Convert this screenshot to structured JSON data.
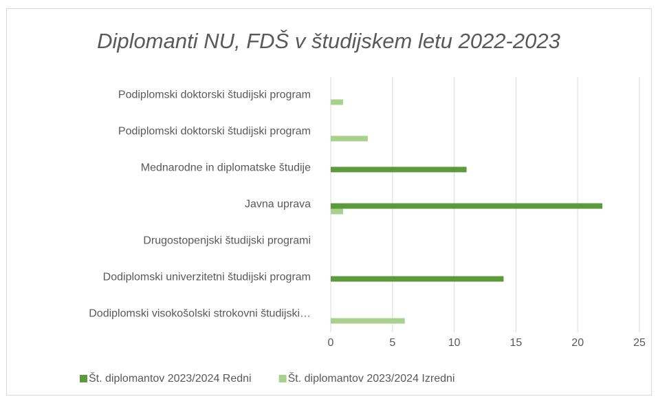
{
  "chart_data": {
    "type": "barh",
    "title": "Diplomanti NU, FDŠ v študijskem letu 2022-2023",
    "categories": [
      "Podiplomski doktorski študijski program",
      "Podiplomski doktorski študijski program",
      "Mednarodne in diplomatske študije",
      "Javna uprava",
      "Drugostopenjski študijski programi",
      "Dodiplomski univerzitetni študijski program",
      "Dodiplomski visokošolski strokovni študijski…"
    ],
    "series": [
      {
        "name": "Št. diplomantov 2023/2024 Redni",
        "color": "#5b9b3c",
        "values": [
          null,
          null,
          11,
          22,
          null,
          14,
          null
        ]
      },
      {
        "name": "Št. diplomantov 2023/2024 Izredni",
        "color": "#a9d18e",
        "values": [
          1,
          3,
          null,
          1,
          null,
          null,
          6
        ]
      }
    ],
    "xlim": [
      0,
      25
    ],
    "xticks": [
      0,
      5,
      10,
      15,
      20,
      25
    ],
    "grid": true,
    "legend": "bottom"
  }
}
